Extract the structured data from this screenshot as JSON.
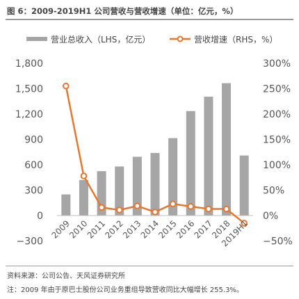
{
  "figure_title": "图 6：2009-2019H1 公司营收与营收增速（单位：亿元，%）",
  "source": "资料来源：公司公告、天风证券研究所",
  "note": "注：2009 年由于原巴士股份公司业务重组导致营收同比大幅增长 255.3%。",
  "chart_data": {
    "type": "bar",
    "categories": [
      "2009",
      "2010",
      "2011",
      "2012",
      "2013",
      "2014",
      "2015",
      "2016",
      "2017",
      "2018",
      "2019H1"
    ],
    "series": [
      {
        "name": "营业总收入（LHS，亿元）",
        "kind": "bar",
        "axis": "left",
        "color": "#a6a6a6",
        "values": [
          250,
          420,
          525,
          580,
          695,
          740,
          915,
          1235,
          1405,
          1565,
          710
        ]
      },
      {
        "name": "营收增速（RHS，%）",
        "kind": "line",
        "axis": "right",
        "color": "#e8762d",
        "values": [
          255.3,
          78,
          16,
          11,
          19,
          7,
          23,
          18,
          13,
          13,
          -15
        ]
      }
    ],
    "left_axis": {
      "min": -300,
      "max": 1800,
      "ticks": [
        -300,
        0,
        300,
        600,
        900,
        1200,
        1500,
        1800
      ],
      "tick_labels": [
        "−300",
        "0",
        "300",
        "600",
        "900",
        "1,200",
        "1,500",
        "1,800"
      ]
    },
    "right_axis": {
      "min": -50,
      "max": 300,
      "ticks": [
        -50,
        0,
        50,
        100,
        150,
        200,
        250,
        300
      ],
      "tick_labels": [
        "−50%",
        "0%",
        "50%",
        "100%",
        "150%",
        "200%",
        "250%",
        "300%"
      ]
    },
    "legend_position": "top",
    "grid": false
  }
}
